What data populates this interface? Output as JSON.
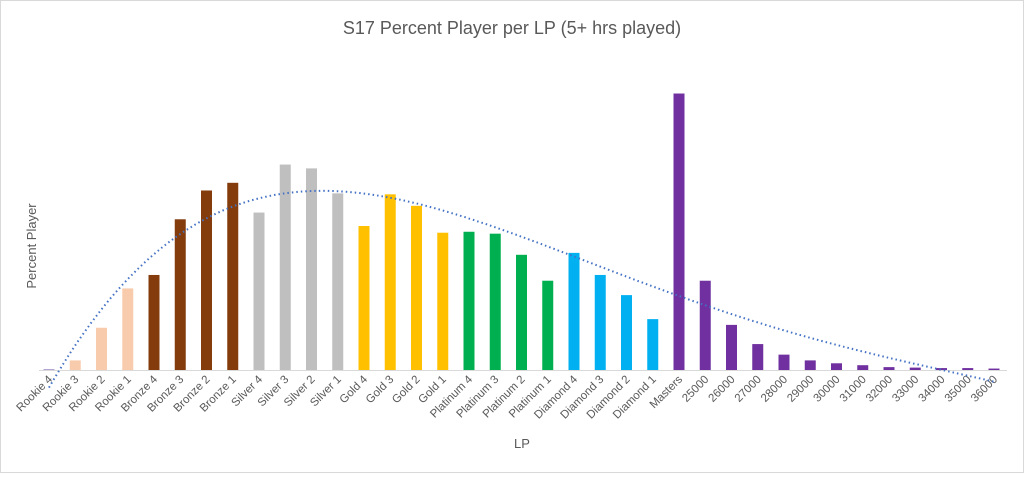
{
  "chart_data": {
    "type": "bar",
    "title": "S17 Percent Player per LP (5+ hrs played)",
    "xlabel": "LP",
    "ylabel": "Percent Player",
    "y_axis_tick_labels_shown": false,
    "ylim": [
      0,
      300
    ],
    "grid": false,
    "legend": "none",
    "trendline": {
      "type": "polynomial",
      "style": "dotted",
      "color": "#4472C4"
    },
    "categories": [
      "Rookie 4",
      "Rookie 3",
      "Rookie 2",
      "Rookie 1",
      "Bronze 4",
      "Bronze 3",
      "Bronze 2",
      "Bronze 1",
      "Silver 4",
      "Silver 3",
      "Silver 2",
      "Silver 1",
      "Gold 4",
      "Gold 3",
      "Gold 2",
      "Gold 1",
      "Platinum 4",
      "Platinum 3",
      "Platinum 2",
      "Platinum 1",
      "Diamond 4",
      "Diamond 3",
      "Diamond 2",
      "Diamond 1",
      "Masters",
      "25000",
      "26000",
      "27000",
      "28000",
      "29000",
      "30000",
      "31000",
      "32000",
      "33000",
      "34000",
      "35000",
      "36000"
    ],
    "values": [
      1,
      10,
      44,
      85,
      99,
      157,
      187,
      195,
      164,
      214,
      210,
      184,
      150,
      183,
      171,
      143,
      144,
      142,
      120,
      93,
      122,
      99,
      78,
      53,
      288,
      93,
      47,
      27,
      16,
      10,
      7,
      5,
      3,
      2.5,
      2,
      2,
      1.5
    ],
    "colors": [
      "#B4A0D0",
      "#F8CBAD",
      "#F8CBAD",
      "#F8CBAD",
      "#843C0C",
      "#843C0C",
      "#843C0C",
      "#843C0C",
      "#BFBFBF",
      "#BFBFBF",
      "#BFBFBF",
      "#BFBFBF",
      "#FFC000",
      "#FFC000",
      "#FFC000",
      "#FFC000",
      "#00B050",
      "#00B050",
      "#00B050",
      "#00B050",
      "#00B0F0",
      "#00B0F0",
      "#00B0F0",
      "#00B0F0",
      "#7030A0",
      "#7030A0",
      "#7030A0",
      "#7030A0",
      "#7030A0",
      "#7030A0",
      "#7030A0",
      "#7030A0",
      "#7030A0",
      "#7030A0",
      "#7030A0",
      "#7030A0",
      "#7030A0"
    ]
  }
}
